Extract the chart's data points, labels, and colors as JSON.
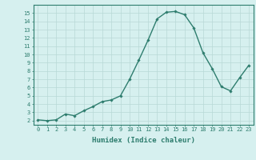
{
  "x": [
    0,
    1,
    2,
    3,
    4,
    5,
    6,
    7,
    8,
    9,
    10,
    11,
    12,
    13,
    14,
    15,
    16,
    17,
    18,
    19,
    20,
    21,
    22,
    23
  ],
  "y": [
    2.1,
    2.0,
    2.1,
    2.8,
    2.6,
    3.2,
    3.7,
    4.3,
    4.5,
    5.0,
    7.0,
    9.3,
    11.7,
    14.3,
    15.1,
    15.2,
    14.8,
    13.2,
    10.2,
    8.3,
    6.1,
    5.6,
    7.2,
    8.7
  ],
  "line_color": "#2e7d6e",
  "marker": "D",
  "marker_size": 1.8,
  "bg_color": "#d6f0ef",
  "grid_color": "#b8d8d6",
  "tick_color": "#2e7d6e",
  "xlabel": "Humidex (Indice chaleur)",
  "xlabel_fontsize": 6.5,
  "ylabel_ticks": [
    2,
    3,
    4,
    5,
    6,
    7,
    8,
    9,
    10,
    11,
    12,
    13,
    14,
    15
  ],
  "xlim": [
    -0.5,
    23.5
  ],
  "ylim": [
    1.5,
    16.0
  ],
  "xtick_fontsize": 5,
  "ytick_fontsize": 5,
  "line_width": 1.0
}
